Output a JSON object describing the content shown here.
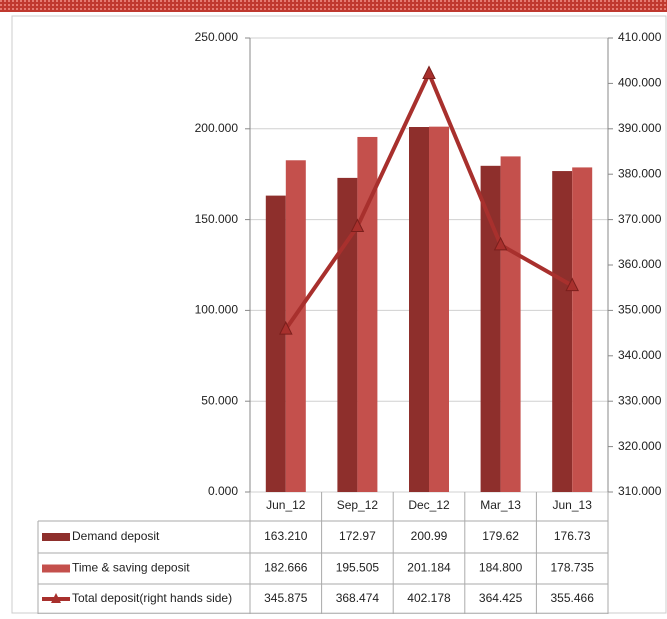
{
  "chart_data": {
    "type": "bar",
    "categories": [
      "Jun_12",
      "Sep_12",
      "Dec_12",
      "Mar_13",
      "Jun_13"
    ],
    "series": [
      {
        "name": "Demand deposit",
        "color": "#8e2f2c",
        "values": [
          163.21,
          172.97,
          200.99,
          179.62,
          176.73
        ],
        "value_labels": [
          "163.210",
          "172.97",
          "200.99",
          "179.62",
          "176.73"
        ]
      },
      {
        "name": "Time & saving deposit",
        "color": "#c4504c",
        "values": [
          182.666,
          195.505,
          201.184,
          184.8,
          178.735
        ],
        "value_labels": [
          "182.666",
          "195.505",
          "201.184",
          "184.800",
          "178.735"
        ]
      },
      {
        "name": "Total deposit(right hands side)",
        "color": "#a8302d",
        "type": "line",
        "axis": "y2",
        "values": [
          345.875,
          368.474,
          402.178,
          364.425,
          355.466
        ],
        "value_labels": [
          "345.875",
          "368.474",
          "402.178",
          "364.425",
          "355.466"
        ]
      }
    ],
    "ylim": [
      0,
      250
    ],
    "yticks": [
      {
        "value": 0,
        "label": "0.000"
      },
      {
        "value": 50,
        "label": "50.000"
      },
      {
        "value": 100,
        "label": "100.000"
      },
      {
        "value": 150,
        "label": "150.000"
      },
      {
        "value": 200,
        "label": "200.000"
      },
      {
        "value": 250,
        "label": "250.000"
      }
    ],
    "y2lim": [
      310,
      410
    ],
    "y2ticks": [
      {
        "value": 310,
        "label": "310.000"
      },
      {
        "value": 320,
        "label": "320.000"
      },
      {
        "value": 330,
        "label": "330.000"
      },
      {
        "value": 340,
        "label": "340.000"
      },
      {
        "value": 350,
        "label": "350.000"
      },
      {
        "value": 360,
        "label": "360.000"
      },
      {
        "value": 370,
        "label": "370.000"
      },
      {
        "value": 380,
        "label": "380.000"
      },
      {
        "value": 390,
        "label": "390.000"
      },
      {
        "value": 400,
        "label": "400.000"
      },
      {
        "value": 410,
        "label": "410.000"
      }
    ],
    "grid": true
  }
}
